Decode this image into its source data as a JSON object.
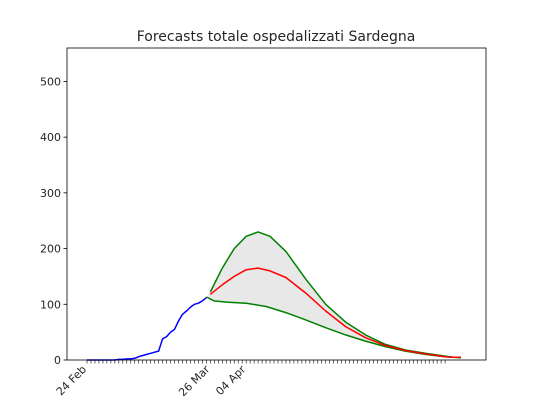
{
  "chart_data": {
    "type": "line",
    "title": "Forecasts totale ospedalizzati Sardegna",
    "xlabel": "",
    "ylabel": "",
    "x_range": [
      0,
      95
    ],
    "ylim": [
      0,
      560
    ],
    "y_ticks": [
      0,
      100,
      200,
      300,
      400,
      500
    ],
    "x_ticks": [
      {
        "label": "24 Feb",
        "x": 0
      },
      {
        "label": "26 Mar",
        "x": 31
      },
      {
        "label": "04 Apr",
        "x": 40
      }
    ],
    "tick_count": 91,
    "grid": false,
    "legend": "none",
    "colors": {
      "observed": "#0000ff",
      "forecast": "#ff0000",
      "bounds": "#008000",
      "band": "#e8e8e8"
    },
    "series": [
      {
        "role": "observed",
        "x": [
          0,
          1,
          2,
          3,
          4,
          5,
          6,
          7,
          8,
          9,
          10,
          11,
          12,
          13,
          14,
          15,
          16,
          17,
          18,
          19,
          20,
          21,
          22,
          23,
          24,
          25,
          26,
          27,
          28,
          29,
          30
        ],
        "values": [
          0,
          0,
          0,
          0,
          0,
          0,
          0,
          0,
          1,
          1,
          2,
          2,
          3,
          6,
          8,
          10,
          12,
          14,
          16,
          38,
          42,
          50,
          55,
          70,
          82,
          88,
          95,
          100,
          102,
          106,
          112
        ]
      },
      {
        "role": "forecast",
        "x": [
          31,
          34,
          37,
          40,
          43,
          46,
          50,
          55,
          60,
          65,
          70,
          75,
          80,
          85,
          90,
          92,
          94
        ],
        "values": [
          118,
          135,
          150,
          162,
          165,
          160,
          148,
          120,
          88,
          60,
          40,
          26,
          17,
          11,
          6,
          5,
          5
        ]
      },
      {
        "role": "upper",
        "x": [
          31,
          34,
          37,
          40,
          43,
          46,
          50,
          55,
          60,
          65,
          70,
          75,
          80,
          85,
          90,
          92,
          94
        ],
        "values": [
          122,
          165,
          200,
          222,
          230,
          222,
          195,
          145,
          100,
          68,
          45,
          28,
          18,
          12,
          7,
          5,
          5
        ]
      },
      {
        "role": "lower",
        "x": [
          30,
          32,
          35,
          40,
          45,
          50,
          55,
          60,
          65,
          70,
          75,
          80,
          85,
          90,
          92,
          94
        ],
        "values": [
          113,
          106,
          104,
          102,
          96,
          85,
          72,
          58,
          45,
          34,
          24,
          16,
          10,
          6,
          5,
          4
        ]
      }
    ]
  }
}
